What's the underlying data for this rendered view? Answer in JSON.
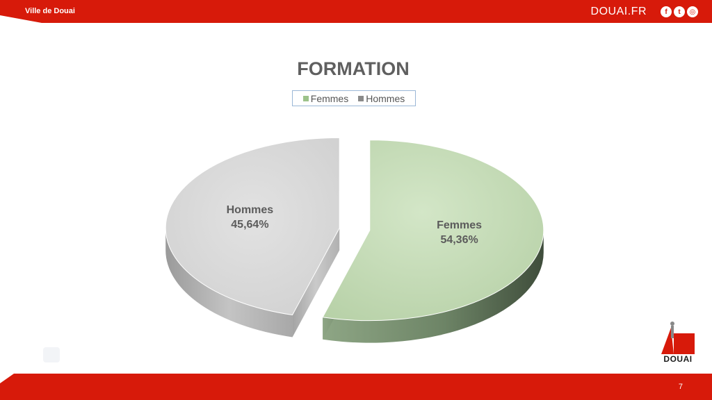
{
  "header": {
    "org_name": "Ville de Douai",
    "site": "DOUAI.FR",
    "social_icons": [
      "facebook-icon",
      "twitter-icon",
      "instagram-icon"
    ]
  },
  "footer": {
    "page_number": "7"
  },
  "logo": {
    "text": "DOUAI"
  },
  "colors": {
    "brand_red": "#d71a0a",
    "femmes": "#c5dcb7",
    "hommes": "#d8d8d8"
  },
  "chart_data": {
    "type": "pie",
    "title": "FORMATION",
    "legend_position": "top",
    "categories": [
      "Femmes",
      "Hommes"
    ],
    "values": [
      54.36,
      45.64
    ],
    "labels": [
      "54,36%",
      "45,64%"
    ],
    "colors": [
      "#c5dcb7",
      "#d8d8d8"
    ]
  }
}
